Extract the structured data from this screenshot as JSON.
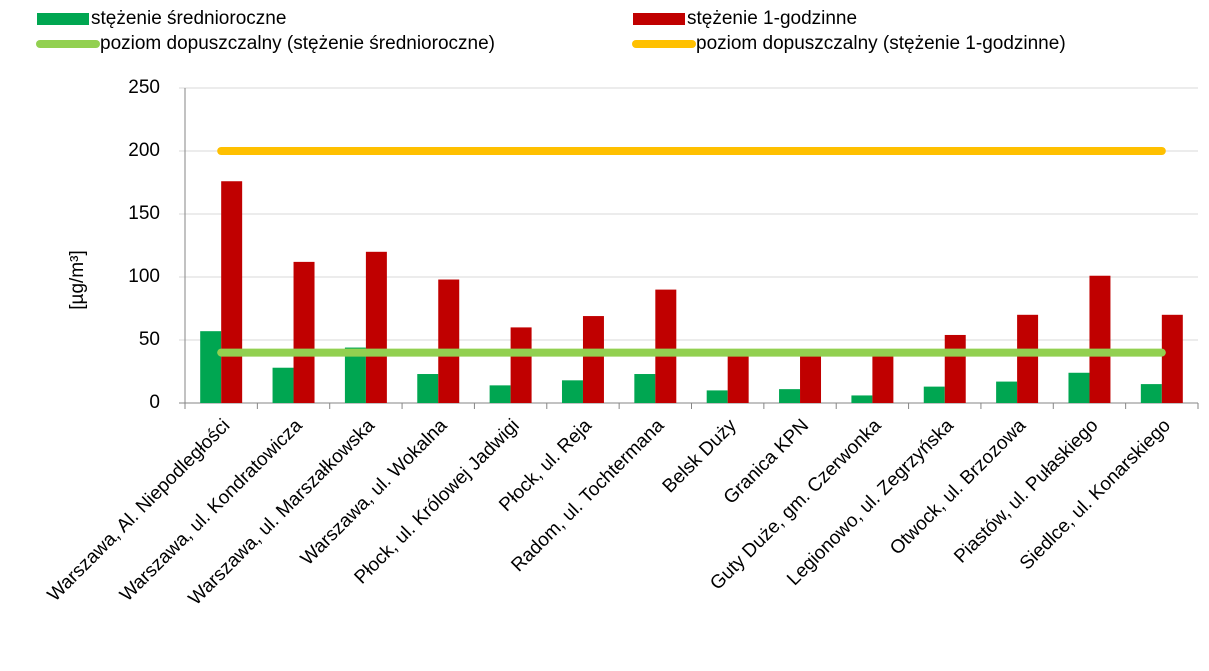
{
  "chart_data": {
    "type": "bar",
    "y_axis_label": "[µg/m³]",
    "categories": [
      "Warszawa, Al. Niepodległości",
      "Warszawa, ul. Kondratowicza",
      "Warszawa, ul. Marszałkowska",
      "Warszawa, ul. Wokalna",
      "Płock, ul. Królowej Jadwigi",
      "Płock, ul. Reja",
      "Radom, ul. Tochtermana",
      "Belsk Duży",
      "Granica KPN",
      "Guty Duże, gm. Czerwonka",
      "Legionowo, ul. Zegrzyńska",
      "Otwock, ul. Brzozowa",
      "Piastów, ul. Pułaskiego",
      "Siedlce, ul. Konarskiego"
    ],
    "series": [
      {
        "name": "stężenie średnioroczne",
        "type": "bar",
        "color": "#00a651",
        "values": [
          57,
          28,
          44,
          23,
          14,
          18,
          23,
          10,
          11,
          6,
          13,
          17,
          24,
          15
        ]
      },
      {
        "name": "stężenie 1-godzinne",
        "type": "bar",
        "color": "#c00000",
        "values": [
          176,
          112,
          120,
          98,
          60,
          69,
          90,
          42,
          40,
          41,
          54,
          70,
          101,
          70
        ]
      },
      {
        "name": "poziom dopuszczalny (stężenie średnioroczne)",
        "type": "line",
        "color": "#92d050",
        "values": [
          40,
          40,
          40,
          40,
          40,
          40,
          40,
          40,
          40,
          40,
          40,
          40,
          40,
          40
        ]
      },
      {
        "name": "poziom dopuszczalny (stężenie 1-godzinne)",
        "type": "line",
        "color": "#ffc000",
        "values": [
          200,
          200,
          200,
          200,
          200,
          200,
          200,
          200,
          200,
          200,
          200,
          200,
          200,
          200
        ]
      }
    ],
    "ylim": [
      0,
      250
    ],
    "yticks": [
      0,
      50,
      100,
      150,
      200,
      250
    ],
    "grid": true
  }
}
